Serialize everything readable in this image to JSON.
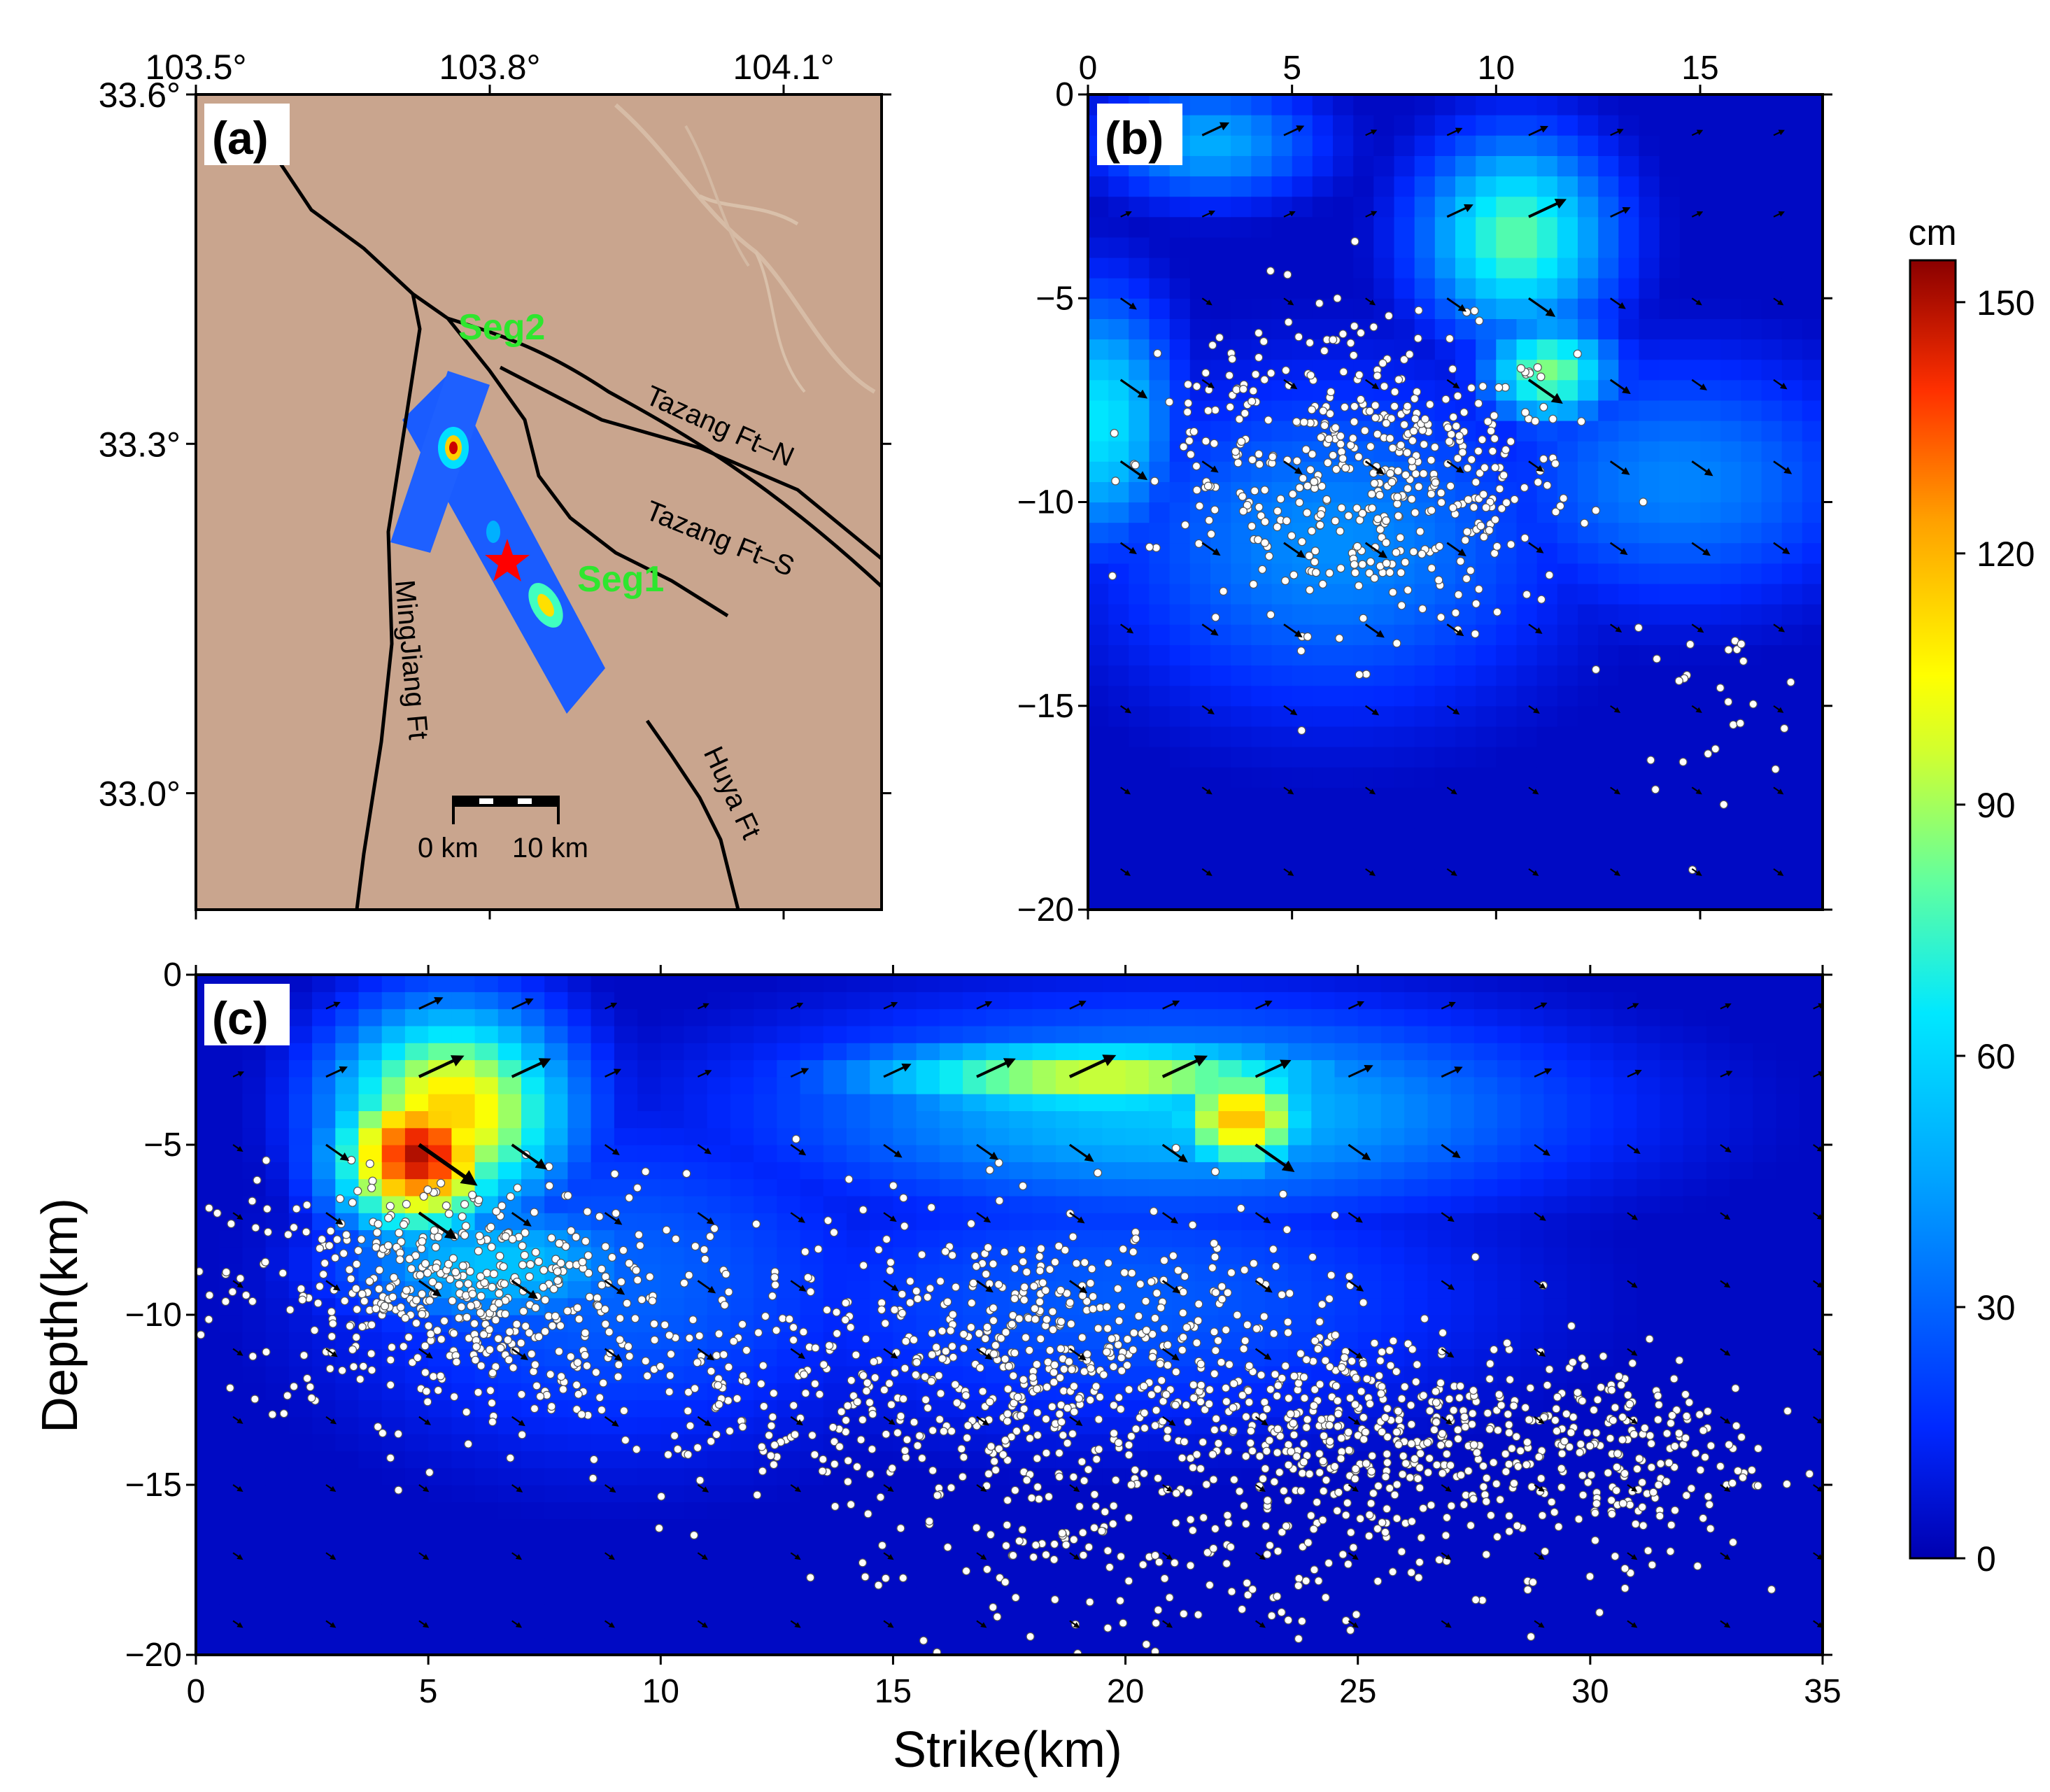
{
  "chart_data": [
    {
      "type": "map",
      "panel_label": "(a)",
      "lon_ticks": [
        "103.5°",
        "103.8°",
        "104.1°"
      ],
      "lon_values": [
        103.5,
        103.8,
        104.1
      ],
      "lat_ticks": [
        "33.6°",
        "33.3°",
        "33.0°"
      ],
      "lat_values": [
        33.6,
        33.3,
        33.0
      ],
      "xlim": [
        103.5,
        104.2
      ],
      "ylim": [
        32.9,
        33.6
      ],
      "fault_labels": {
        "tazang_n": "Tazang Ft–N",
        "tazang_s": "Tazang Ft–S",
        "mingjiang": "MingJiang Ft",
        "huya": "Huya Ft"
      },
      "segment_labels": {
        "seg1": "Seg1",
        "seg2": "Seg2"
      },
      "scalebar": {
        "left": "0 km",
        "right": "10 km"
      },
      "epicenter_marker": "red star",
      "colors": {
        "background": "#c9a58e",
        "fault": "#000000",
        "segment_label": "#2ee62e",
        "star": "#ff0000"
      }
    },
    {
      "type": "heatmap",
      "panel_label": "(b)",
      "segment": "Seg2",
      "xlabel": "",
      "ylabel": "",
      "xlim": [
        0,
        18
      ],
      "ylim": [
        -20,
        0
      ],
      "x_ticks": [
        0,
        5,
        10,
        15
      ],
      "y_ticks": [
        0,
        -5,
        -10,
        -15,
        -20
      ],
      "slip_patches_cm": [
        {
          "x": 10.5,
          "y": -3.5,
          "slip": 80,
          "rx": 2.3,
          "ry": 2.4
        },
        {
          "x": 11.3,
          "y": -6.8,
          "slip": 85,
          "rx": 1.6,
          "ry": 1.3
        },
        {
          "x": 0.3,
          "y": -8.0,
          "slip": 65,
          "rx": 1.8,
          "ry": 3.0
        },
        {
          "x": 3.0,
          "y": -1.2,
          "slip": 48,
          "rx": 2.6,
          "ry": 1.4
        },
        {
          "x": 6.0,
          "y": -11.0,
          "slip": 40,
          "rx": 5.5,
          "ry": 4.0
        },
        {
          "x": 14.5,
          "y": -9.5,
          "slip": 38,
          "rx": 4.5,
          "ry": 3.0
        }
      ]
    },
    {
      "type": "heatmap",
      "panel_label": "(c)",
      "segment": "Seg1",
      "xlabel": "Strike(km)",
      "ylabel": "Depth(km)",
      "xlim": [
        0,
        35
      ],
      "ylim": [
        -20,
        0
      ],
      "x_ticks": [
        0,
        5,
        10,
        15,
        20,
        25,
        30,
        35
      ],
      "y_ticks": [
        0,
        -5,
        -10,
        -15,
        -20
      ],
      "slip_patches_cm": [
        {
          "x": 4.8,
          "y": -5.3,
          "slip": 150,
          "rx": 1.8,
          "ry": 2.3
        },
        {
          "x": 5.5,
          "y": -4.0,
          "slip": 115,
          "rx": 2.5,
          "ry": 3.0
        },
        {
          "x": 19.5,
          "y": -3.0,
          "slip": 100,
          "rx": 5.5,
          "ry": 1.1
        },
        {
          "x": 22.5,
          "y": -4.2,
          "slip": 120,
          "rx": 1.5,
          "ry": 1.6
        },
        {
          "x": 21.0,
          "y": -4.0,
          "slip": 55,
          "rx": 8.5,
          "ry": 3.0
        },
        {
          "x": 6.5,
          "y": -8.5,
          "slip": 55,
          "rx": 3.5,
          "ry": 2.0
        },
        {
          "x": 9.0,
          "y": -9.0,
          "slip": 30,
          "rx": 6.0,
          "ry": 5.0
        },
        {
          "x": 20.0,
          "y": -9.5,
          "slip": 28,
          "rx": 8.0,
          "ry": 4.0
        }
      ]
    },
    {
      "type": "colorbar",
      "unit": "cm",
      "ticks": [
        0,
        30,
        60,
        90,
        120,
        150
      ],
      "range": [
        0,
        155
      ],
      "colormap": [
        "#0000aa",
        "#0030ff",
        "#00a0ff",
        "#00e0ff",
        "#40ffc0",
        "#a0ff60",
        "#ffff00",
        "#ffa000",
        "#ff4000",
        "#dd0000",
        "#880000"
      ]
    }
  ]
}
